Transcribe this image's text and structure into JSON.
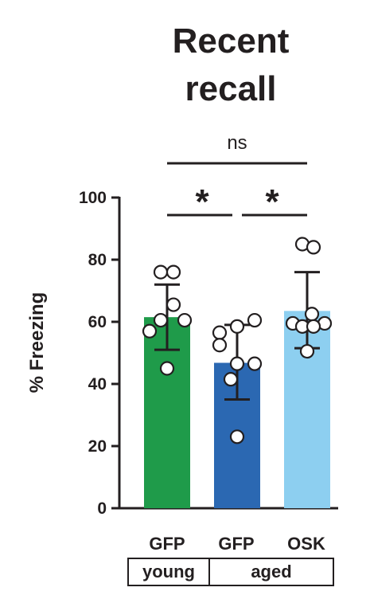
{
  "chart_data": {
    "type": "bar",
    "title": [
      "Recent",
      "recall"
    ],
    "ylabel": "% Freezing",
    "ylim": [
      0,
      100
    ],
    "yticks": [
      "0",
      "20",
      "40",
      "60",
      "80",
      "100"
    ],
    "categories": [
      "GFP",
      "GFP",
      "OSK"
    ],
    "groups": [
      "young",
      "aged"
    ],
    "group_spans": [
      [
        0,
        0
      ],
      [
        1,
        2
      ]
    ],
    "colors": [
      "#1f9b4a",
      "#2b68b2",
      "#8dcff0"
    ],
    "values": [
      61.5,
      46.8,
      63.5
    ],
    "error_upper": [
      72,
      59,
      76
    ],
    "error_lower": [
      51,
      35,
      51.5
    ],
    "points": [
      [
        76,
        76,
        65.5,
        60.5,
        60.5,
        57,
        45
      ],
      [
        60.5,
        58.5,
        56.5,
        52.5,
        46.5,
        46.5,
        41.5,
        23
      ],
      [
        85,
        84,
        62.5,
        59.5,
        59.5,
        58.5,
        58.5,
        50.5
      ]
    ],
    "significance": [
      {
        "from": 0,
        "to": 1,
        "label": "*"
      },
      {
        "from": 1,
        "to": 2,
        "label": "*"
      },
      {
        "from": 0,
        "to": 2,
        "label": "ns"
      }
    ]
  }
}
